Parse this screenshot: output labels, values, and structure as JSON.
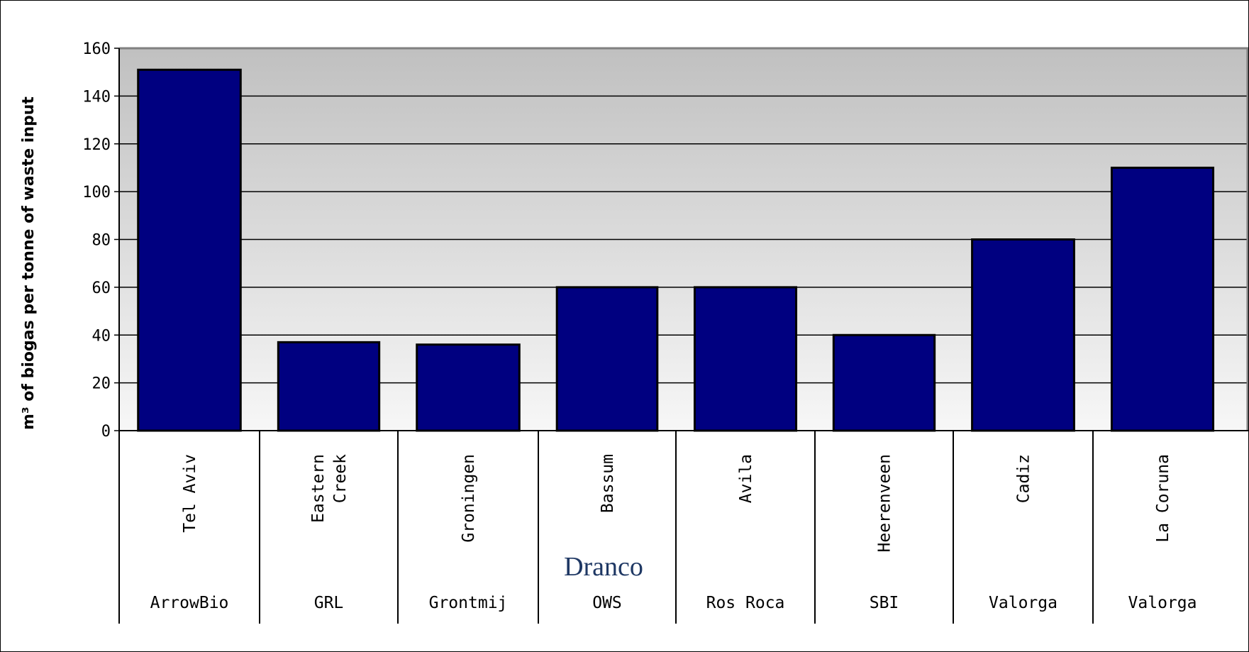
{
  "chart_data": {
    "type": "bar",
    "ylabel": "m³ of biogas per tonne of waste input",
    "ylim": [
      0,
      160
    ],
    "yticks": [
      0,
      20,
      40,
      60,
      80,
      100,
      120,
      140,
      160
    ],
    "grid": true,
    "categories": [
      {
        "name": [
          "Tel Aviv"
        ],
        "company": "ArrowBio"
      },
      {
        "name": [
          "Eastern",
          "Creek"
        ],
        "company": "GRL"
      },
      {
        "name": [
          "Groningen"
        ],
        "company": "Grontmij"
      },
      {
        "name": [
          "Bassum"
        ],
        "company": "OWS"
      },
      {
        "name": [
          "Avila"
        ],
        "company": "Ros Roca"
      },
      {
        "name": [
          "Heerenveen"
        ],
        "company": "SBI"
      },
      {
        "name": [
          "Cadiz"
        ],
        "company": "Valorga"
      },
      {
        "name": [
          "La Coruna"
        ],
        "company": "Valorga"
      }
    ],
    "values": [
      151,
      37,
      36,
      60,
      60,
      40,
      80,
      110
    ],
    "annotation": "Dranco",
    "bar_color": "#000080",
    "background_gradient": [
      "#c0c0c0",
      "#f7f7f7"
    ]
  }
}
